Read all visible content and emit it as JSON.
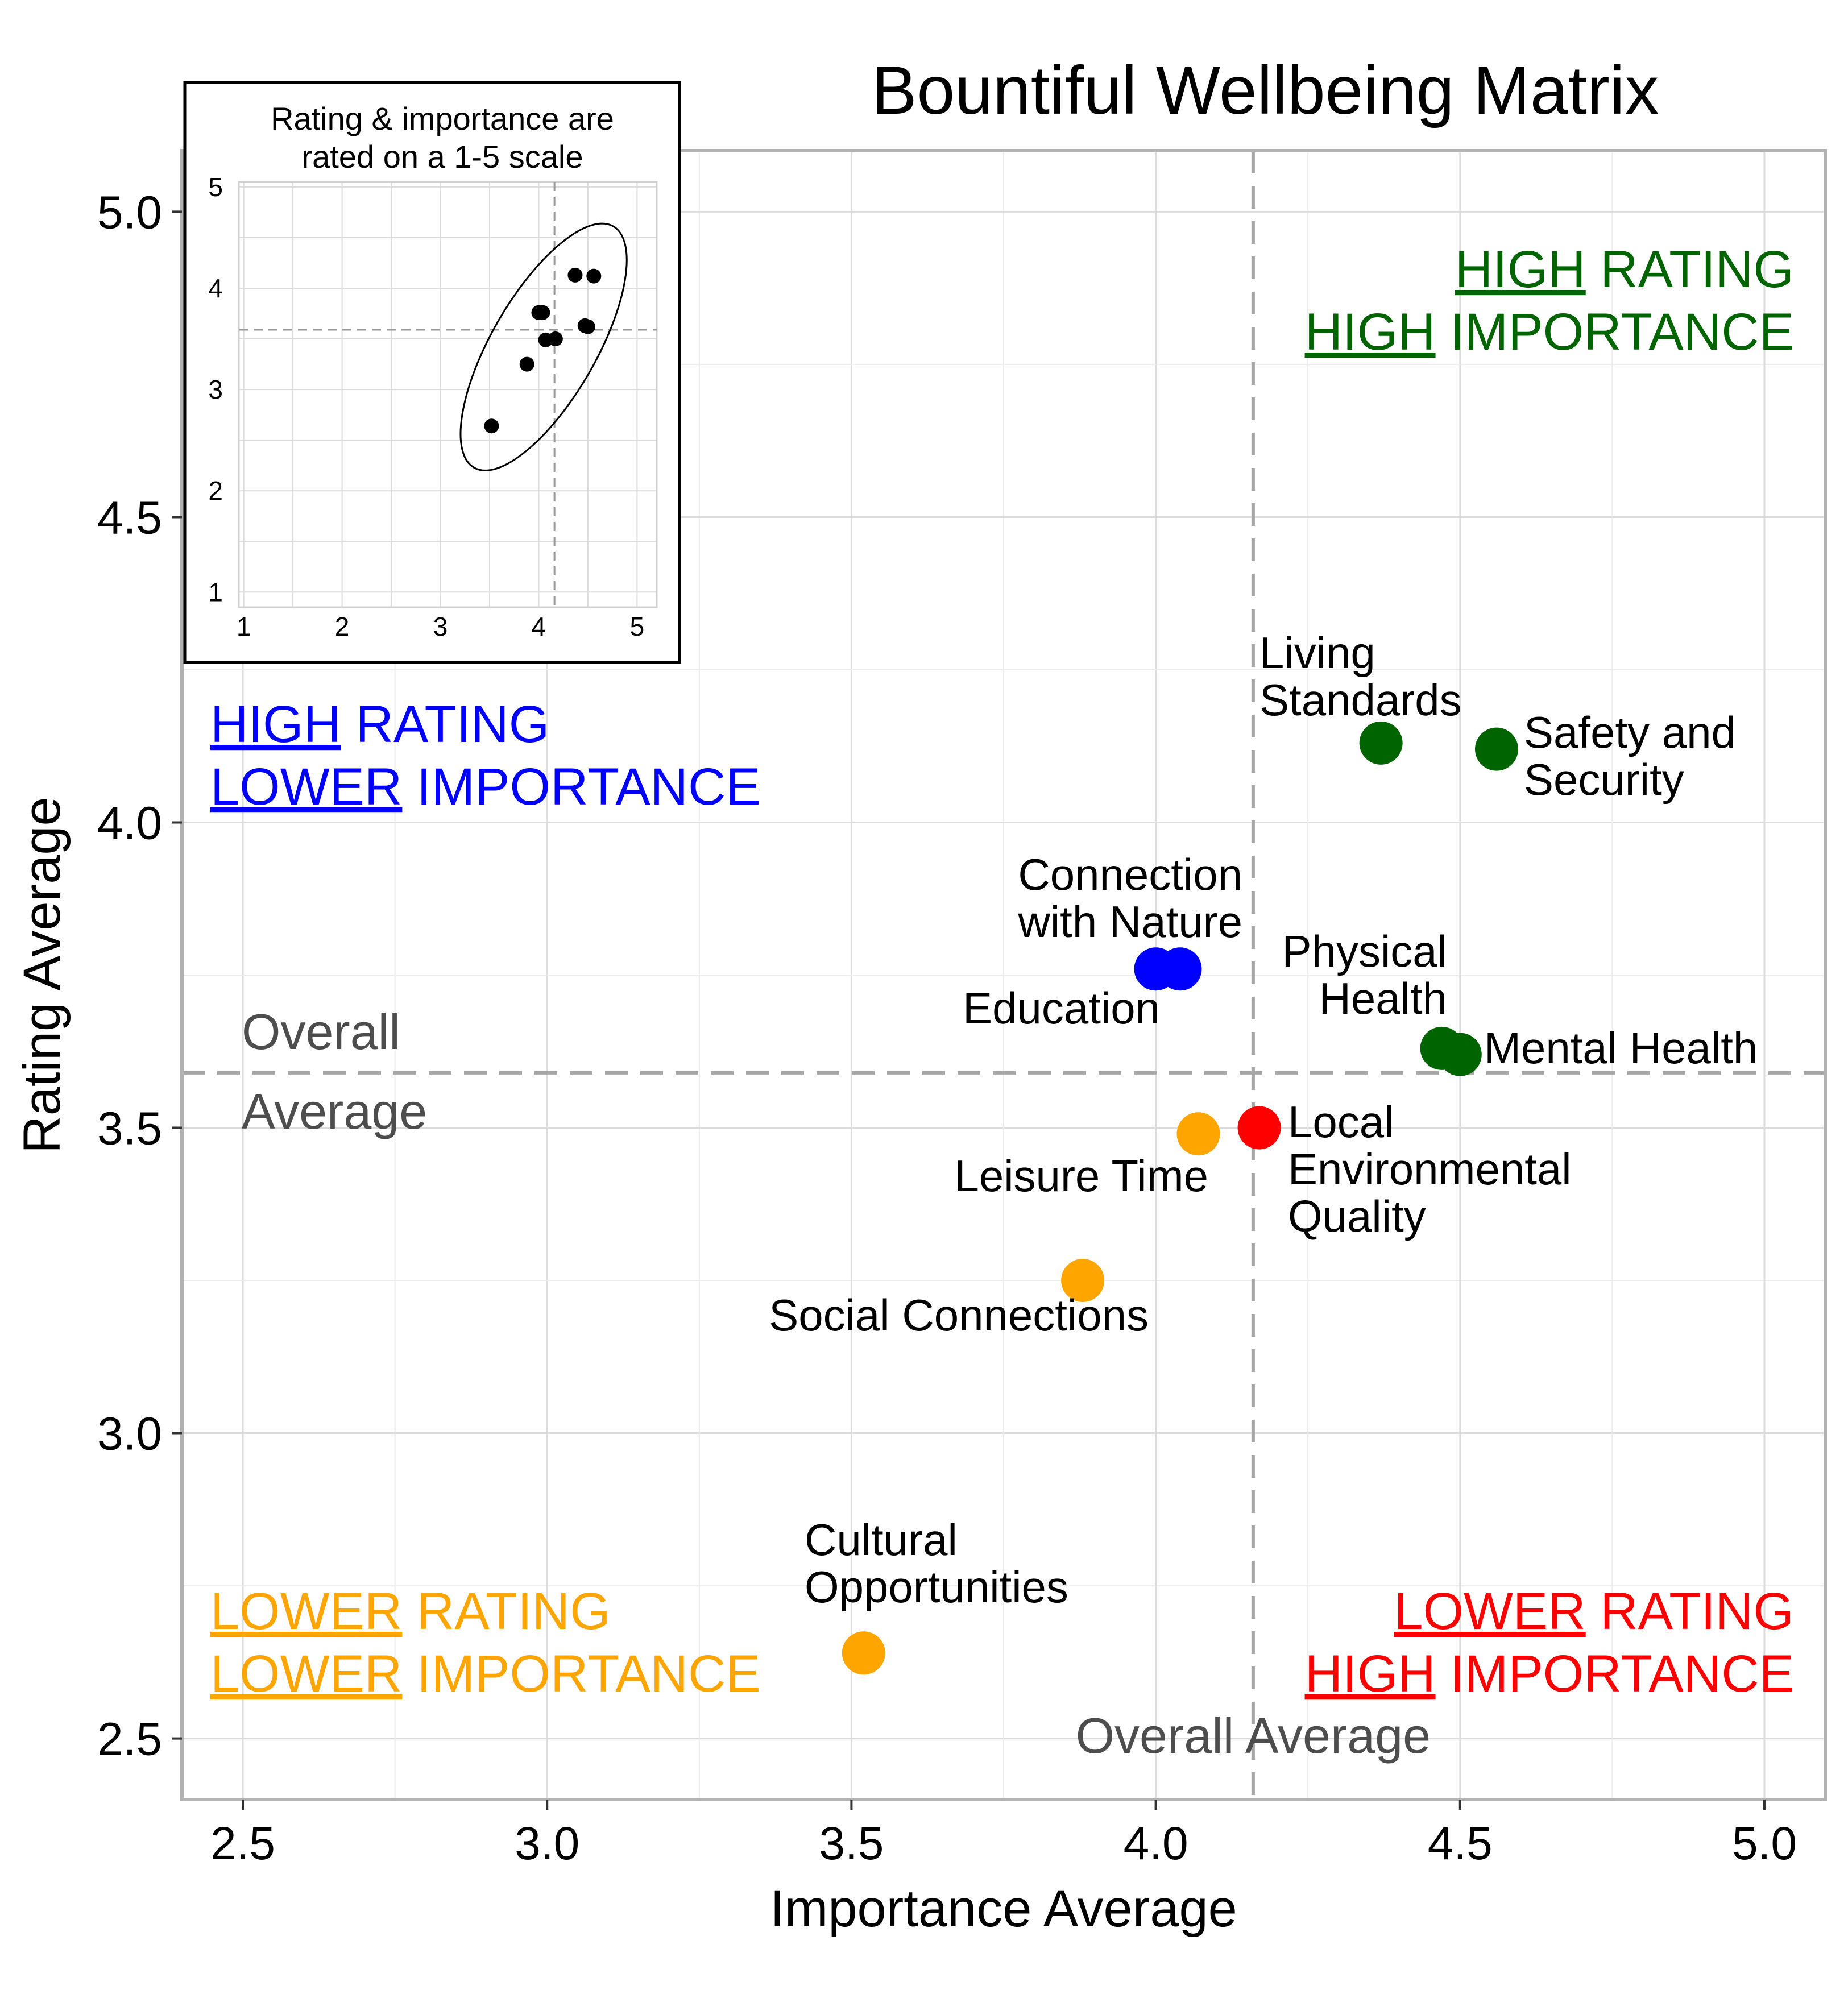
{
  "chart_data": {
    "type": "scatter",
    "title": "Bountiful Wellbeing Matrix",
    "xlabel": "Importance Average",
    "ylabel": "Rating Average",
    "xlim": [
      2.4,
      5.1
    ],
    "ylim": [
      2.4,
      5.1
    ],
    "x_ticks": [
      "2.5",
      "3.0",
      "3.5",
      "4.0",
      "4.5",
      "5.0"
    ],
    "y_ticks": [
      "2.5",
      "3.0",
      "3.5",
      "4.0",
      "4.5",
      "5.0"
    ],
    "grid": true,
    "reference_lines": {
      "x_average": 4.16,
      "y_average": 3.59,
      "x_label": "Overall Average",
      "y_label_line1": "Overall",
      "y_label_line2": "Average"
    },
    "colors": {
      "high_high": "#006400",
      "high_low": "#0000ff",
      "low_low": "#ffa500",
      "low_high": "#ff0000",
      "reference": "#4d4d4d"
    },
    "quadrants": {
      "top_right": {
        "line1_u": "HIGH",
        "line1_rest": " RATING",
        "line2_u": "HIGH",
        "line2_rest": " IMPORTANCE"
      },
      "top_left": {
        "line1_u": "HIGH",
        "line1_rest": " RATING",
        "line2_u": "LOWER",
        "line2_rest": " IMPORTANCE"
      },
      "bottom_left": {
        "line1_u": "LOWER",
        "line1_rest": " RATING",
        "line2_u": "LOWER",
        "line2_rest": " IMPORTANCE"
      },
      "bottom_right": {
        "line1_u": "LOWER",
        "line1_rest": " RATING",
        "line2_u": "HIGH",
        "line2_rest": " IMPORTANCE"
      }
    },
    "points": [
      {
        "label": [
          "Living",
          "Standards"
        ],
        "x": 4.37,
        "y": 4.13,
        "group": "high_high"
      },
      {
        "label": [
          "Safety and",
          "Security"
        ],
        "x": 4.56,
        "y": 4.12,
        "group": "high_high"
      },
      {
        "label": [
          "Physical",
          "Health"
        ],
        "x": 4.47,
        "y": 3.63,
        "group": "high_high"
      },
      {
        "label": [
          "Mental Health"
        ],
        "x": 4.5,
        "y": 3.62,
        "group": "high_high"
      },
      {
        "label": [
          "Connection",
          "with Nature"
        ],
        "x": 4.04,
        "y": 3.76,
        "group": "high_low"
      },
      {
        "label": [
          "Education"
        ],
        "x": 4.0,
        "y": 3.76,
        "group": "high_low"
      },
      {
        "label": [
          "Local",
          "Environmental",
          "Quality"
        ],
        "x": 4.17,
        "y": 3.5,
        "group": "low_high"
      },
      {
        "label": [
          "Leisure Time"
        ],
        "x": 4.07,
        "y": 3.49,
        "group": "low_low"
      },
      {
        "label": [
          "Social Connections"
        ],
        "x": 3.88,
        "y": 3.25,
        "group": "low_low"
      },
      {
        "label": [
          "Cultural",
          "Opportunities"
        ],
        "x": 3.52,
        "y": 2.64,
        "group": "low_low"
      }
    ],
    "inset": {
      "title_line1": "Rating & importance are",
      "title_line2": "rated on a 1-5 scale",
      "xlim": [
        0.95,
        5.2
      ],
      "ylim": [
        0.85,
        5.05
      ],
      "x_ticks": [
        "1",
        "2",
        "3",
        "4",
        "5"
      ],
      "y_ticks": [
        "1",
        "2",
        "3",
        "4",
        "5"
      ],
      "x_average": 4.16,
      "y_average": 3.59
    }
  }
}
